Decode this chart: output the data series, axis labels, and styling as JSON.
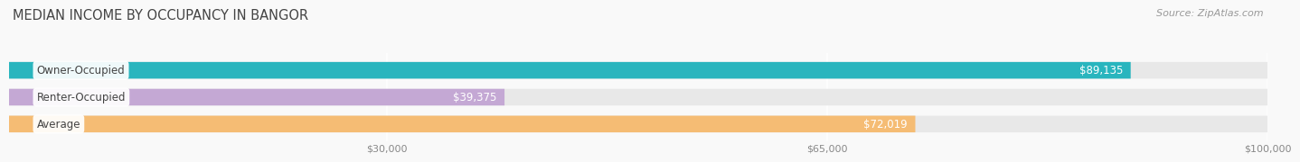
{
  "title": "MEDIAN INCOME BY OCCUPANCY IN BANGOR",
  "source_text": "Source: ZipAtlas.com",
  "categories": [
    "Owner-Occupied",
    "Renter-Occupied",
    "Average"
  ],
  "values": [
    89135,
    39375,
    72019
  ],
  "bar_colors": [
    "#29b5be",
    "#c4a8d4",
    "#f5bc74"
  ],
  "bar_bg_color": "#e8e8e8",
  "label_values": [
    "$89,135",
    "$39,375",
    "$72,019"
  ],
  "x_ticks": [
    30000,
    65000,
    100000
  ],
  "x_tick_labels": [
    "$30,000",
    "$65,000",
    "$100,000"
  ],
  "xlim": [
    0,
    100000
  ],
  "title_fontsize": 10.5,
  "source_fontsize": 8,
  "label_fontsize": 8.5,
  "tick_fontsize": 8,
  "bar_label_color": "#ffffff",
  "category_label_color": "#444444",
  "background_color": "#f9f9f9",
  "bar_height": 0.62,
  "value_label_outside_color": "#666666"
}
